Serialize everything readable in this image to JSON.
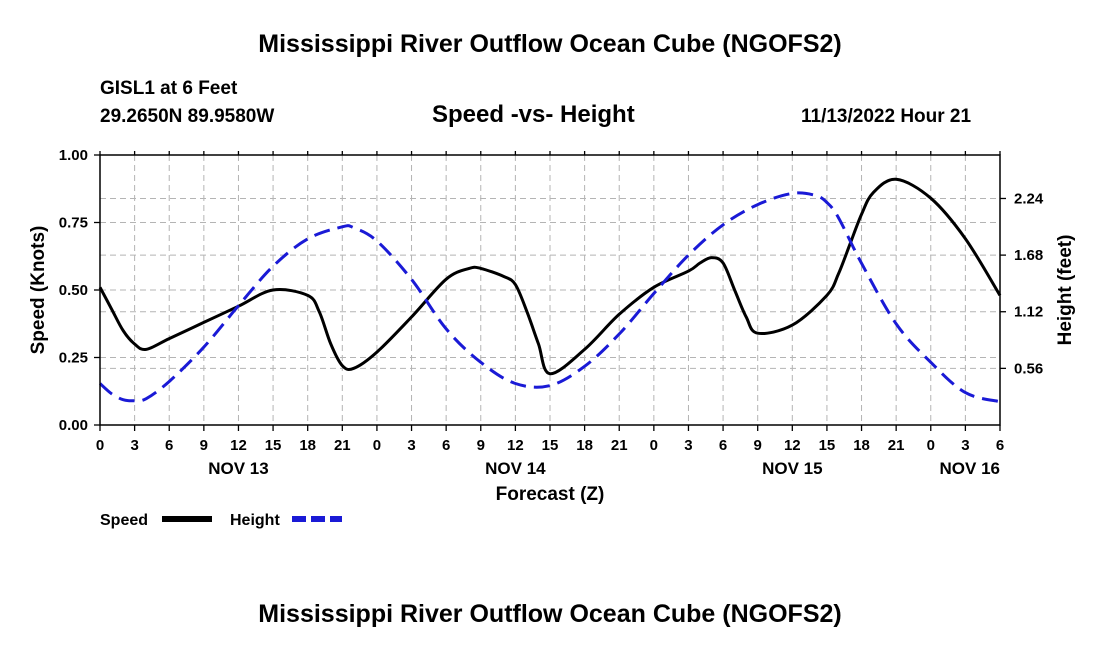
{
  "page": {
    "title": "Mississippi River Outflow Ocean Cube (NGOFS2)",
    "bottom_title": "Mississippi River Outflow Ocean Cube (NGOFS2)",
    "station": "GISL1 at 6 Feet",
    "coords": "29.2650N  89.9580W",
    "subtitle": "Speed -vs- Height",
    "datetime": "11/13/2022 Hour 21"
  },
  "colors": {
    "speed": "#000000",
    "height": "#1a1ad6",
    "grid": "#b4b4b4"
  },
  "chart_data": {
    "type": "line",
    "title": "Speed -vs- Height",
    "xlabel": "Forecast (Z)",
    "ylabel": "Speed (Knots)",
    "y2label": "Height (feet)",
    "xlim": [
      0,
      78
    ],
    "ylim": [
      0,
      1
    ],
    "y2lim": [
      0,
      2.67
    ],
    "x_ticks": [
      0,
      3,
      6,
      9,
      12,
      15,
      18,
      21,
      24,
      27,
      30,
      33,
      36,
      39,
      42,
      45,
      48,
      51,
      54,
      57,
      60,
      63,
      66,
      69,
      72,
      75,
      78
    ],
    "x_tick_labels": [
      "0",
      "3",
      "6",
      "9",
      "12",
      "15",
      "18",
      "21",
      "0",
      "3",
      "6",
      "9",
      "12",
      "15",
      "18",
      "21",
      "0",
      "3",
      "6",
      "9",
      "12",
      "15",
      "18",
      "21",
      "0",
      "3",
      "6"
    ],
    "y_ticks": [
      0,
      0.25,
      0.5,
      0.75,
      1.0
    ],
    "y_tick_labels": [
      "0.00",
      "0.25",
      "0.50",
      "0.75",
      "1.00"
    ],
    "y2_ticks": [
      0.56,
      1.12,
      1.68,
      2.24
    ],
    "y2_tick_labels": [
      "0.56",
      "1.12",
      "1.68",
      "2.24"
    ],
    "date_labels": [
      {
        "x": 12,
        "label": "NOV 13"
      },
      {
        "x": 36,
        "label": "NOV 14"
      },
      {
        "x": 60,
        "label": "NOV 15"
      },
      {
        "x": 78,
        "label": "NOV 16"
      }
    ],
    "legend": [
      {
        "name": "Speed",
        "style": "solid"
      },
      {
        "name": "Height",
        "style": "dashed"
      }
    ],
    "series": [
      {
        "name": "Speed",
        "unit": "Knots",
        "axis": "left",
        "style": "solid",
        "x": [
          0,
          1,
          2,
          3,
          4,
          6,
          9,
          12,
          15,
          18,
          19,
          20,
          21,
          22,
          24,
          27,
          30,
          32,
          33,
          35,
          36,
          37,
          38,
          39,
          42,
          45,
          48,
          51,
          52,
          53,
          54,
          55,
          56,
          57,
          60,
          63,
          64,
          65,
          66,
          67,
          69,
          72,
          75,
          78
        ],
        "values": [
          0.51,
          0.43,
          0.35,
          0.3,
          0.28,
          0.32,
          0.38,
          0.44,
          0.5,
          0.48,
          0.42,
          0.3,
          0.22,
          0.21,
          0.27,
          0.4,
          0.54,
          0.58,
          0.58,
          0.55,
          0.52,
          0.42,
          0.3,
          0.19,
          0.28,
          0.41,
          0.51,
          0.57,
          0.6,
          0.62,
          0.6,
          0.5,
          0.4,
          0.34,
          0.37,
          0.48,
          0.56,
          0.67,
          0.78,
          0.86,
          0.91,
          0.84,
          0.69,
          0.48
        ]
      },
      {
        "name": "Height",
        "unit": "feet",
        "axis": "right",
        "style": "dashed",
        "x": [
          0,
          1,
          2,
          3,
          4,
          6,
          9,
          12,
          15,
          18,
          21,
          22,
          24,
          27,
          30,
          33,
          36,
          39,
          42,
          45,
          48,
          51,
          54,
          57,
          60,
          62,
          63,
          64,
          66,
          69,
          72,
          75,
          78
        ],
        "values": [
          0.41,
          0.31,
          0.25,
          0.24,
          0.26,
          0.43,
          0.77,
          1.18,
          1.57,
          1.84,
          1.96,
          1.95,
          1.82,
          1.44,
          0.95,
          0.62,
          0.41,
          0.39,
          0.58,
          0.9,
          1.3,
          1.68,
          1.98,
          2.18,
          2.29,
          2.27,
          2.2,
          2.05,
          1.6,
          1.0,
          0.62,
          0.32,
          0.23
        ]
      }
    ]
  }
}
